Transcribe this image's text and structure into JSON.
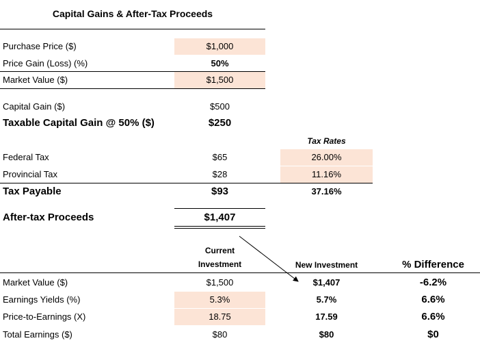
{
  "title": "Capital Gains & After-Tax Proceeds",
  "summary": [
    {
      "label": "Purchase Price ($)",
      "value": "$1,000"
    },
    {
      "label": "Price Gain (Loss) (%)",
      "value": "50%"
    },
    {
      "label": "Market Value ($)",
      "value": "$1,500"
    },
    {
      "label": "Capital Gain ($)",
      "value": "$500"
    },
    {
      "label": "Taxable Capital Gain @ 50% ($)",
      "value": "$250"
    },
    {
      "label": "Federal Tax",
      "value": "$65",
      "rate": "26.00%"
    },
    {
      "label": "Provincial Tax",
      "value": "$28",
      "rate": "11.16%"
    },
    {
      "label": "Tax Payable",
      "value": "$93",
      "rate": "37.16%"
    },
    {
      "label": "After-tax Proceeds",
      "value": "$1,407"
    }
  ],
  "tax_rates_header": "Tax Rates",
  "comparison": {
    "columns": [
      "Current Investment",
      "New Investment",
      "% Difference"
    ],
    "rows": [
      [
        "Market Value ($)",
        "$1,500",
        "$1,407",
        "-6.2%"
      ],
      [
        "Earnings Yields (%)",
        "5.3%",
        "5.7%",
        "6.6%"
      ],
      [
        "Price-to-Earnings (X)",
        "18.75",
        "17.59",
        "6.6%"
      ],
      [
        "Total Earnings ($)",
        "$80",
        "$80",
        "$0"
      ]
    ]
  }
}
